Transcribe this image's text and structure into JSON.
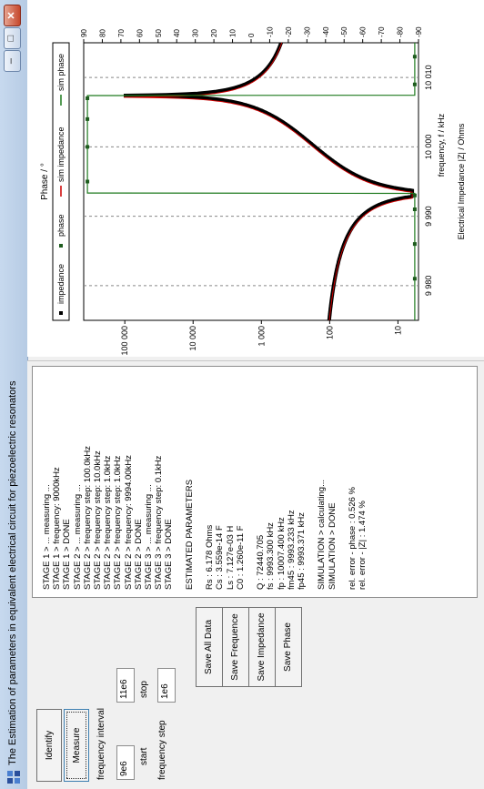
{
  "window": {
    "title": "The Estimation of parameters in equivalent  electrical circuit for piezoelectric resonators",
    "controls": {
      "minimize": "–",
      "maximize": "□",
      "close": "✕"
    }
  },
  "buttons": {
    "identify": "Identify",
    "measure": "Measure",
    "save_all": "Save All Data",
    "save_frequence": "Save Frequence",
    "save_impedance": "Save Impedance",
    "save_phase": "Save Phase"
  },
  "frequency": {
    "interval_label": "frequency interval",
    "start_value": "9e6",
    "start_label": "start",
    "stop_value": "11e6",
    "stop_label": "stop",
    "step_label": "frequency step",
    "step_value": "1e6"
  },
  "log": {
    "lines": [
      "STAGE 1 > ... measuring ...",
      "STAGE 1 > frequency: 9000kHz",
      "STAGE 1 > DONE",
      "STAGE 2 > ... measuring ...",
      "STAGE 2 > frequency step: 100.0kHz",
      "STAGE 2 > frequency step: 10.0kHz",
      "STAGE 2 > frequency step: 1.0kHz",
      "STAGE 2 > frequency step: 1.0kHz",
      "STAGE 2 > frequency: 9994.00kHz",
      "STAGE 2 > DONE",
      "STAGE 3 > ... measuring ...",
      "STAGE 3 > frequency step: 0.1kHz",
      "STAGE 3 > DONE",
      "",
      "ESTIMATED PARAMETERS",
      "",
      "Rs      : 6.178 Ohms",
      "Cs      : 3.559e-14 F",
      "Ls      : 7.127e-03 H",
      "C0      : 1.260e-11 F",
      "",
      "Q        : 72440.705",
      "fs        : 9993.300 kHz",
      "fp        : 10007.400 kHz",
      "fm45    : 9993.233 kHz",
      "fp45    : 9993.371 kHz",
      "",
      "SIMULATION > calculating...",
      "SIMULATION > DONE",
      "",
      "rel. error - phase      : 0.526 %",
      "rel. error - |Z|         : 1.474 %"
    ]
  },
  "chart": {
    "phase_axis_title": "Phase / °",
    "impedance_axis_title": "Electrical Impedance |Z| / Ohms",
    "frequency_axis_title": "frequency, f / kHz",
    "legend": [
      "impedance",
      "phase",
      "sim impedance",
      "sim phase"
    ]
  },
  "chart_data": {
    "type": "line",
    "x_label": "frequency, f / kHz",
    "x_ticks": [
      "9 980",
      "9 990",
      "10 000",
      "10 010"
    ],
    "x_range": [
      9975,
      10015
    ],
    "y_left_label": "Electrical Impedance |Z| / Ohms",
    "y_left_ticks": [
      "10",
      "100",
      "1 000",
      "10 000",
      "100 000"
    ],
    "y_left_range": [
      5,
      400000
    ],
    "y_left_scale": "log",
    "y_right_label": "Phase / °",
    "y_right_ticks": [
      "90",
      "80",
      "70",
      "60",
      "50",
      "40",
      "30",
      "20",
      "10",
      "0",
      "-10",
      "-20",
      "-30",
      "-40",
      "-50",
      "-60",
      "-70",
      "-80",
      "-90"
    ],
    "y_right_range": [
      -90,
      90
    ],
    "series": [
      {
        "name": "impedance",
        "style": "markers",
        "color": "#000000"
      },
      {
        "name": "phase",
        "style": "markers",
        "color": "#1e5c1e"
      },
      {
        "name": "sim impedance",
        "style": "line",
        "color": "#cc0000"
      },
      {
        "name": "sim phase",
        "style": "line",
        "color": "#1e7a1e"
      }
    ],
    "fs_khz": 9993.3,
    "fp_khz": 10007.4,
    "rs_ohms": 6.178
  }
}
